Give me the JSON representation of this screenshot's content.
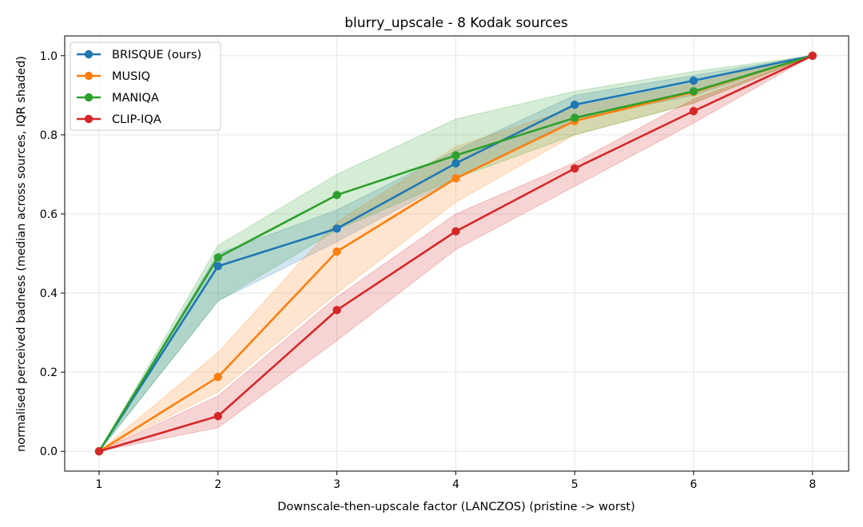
{
  "chart_data": {
    "type": "line",
    "title": "blurry_upscale - 8 Kodak sources",
    "xlabel": "Downscale-then-upscale factor (LANCZOS)  (pristine -> worst)",
    "ylabel": "normalised perceived badness  (median across sources, IQR shaded)",
    "categories": [
      "1",
      "2",
      "3",
      "4",
      "5",
      "6",
      "8"
    ],
    "ylim": [
      -0.05,
      1.05
    ],
    "yticks": [
      "0.0",
      "0.2",
      "0.4",
      "0.6",
      "0.8",
      "1.0"
    ],
    "grid": true,
    "legend_position": "top-left",
    "series": [
      {
        "name": "BRISQUE (ours)",
        "color": "#1f77b4",
        "values": [
          0.0,
          0.468,
          0.563,
          0.728,
          0.876,
          0.937,
          1.0
        ],
        "iqr_low": [
          0.0,
          0.38,
          0.53,
          0.69,
          0.84,
          0.9,
          1.0
        ],
        "iqr_high": [
          0.0,
          0.5,
          0.61,
          0.76,
          0.9,
          0.95,
          1.0
        ]
      },
      {
        "name": "MUSIQ",
        "color": "#ff7f0e",
        "values": [
          0.0,
          0.188,
          0.505,
          0.69,
          0.835,
          0.908,
          1.0
        ],
        "iqr_low": [
          0.0,
          0.15,
          0.4,
          0.63,
          0.8,
          0.88,
          1.0
        ],
        "iqr_high": [
          0.0,
          0.25,
          0.58,
          0.77,
          0.87,
          0.93,
          1.0
        ]
      },
      {
        "name": "MANIQA",
        "color": "#2ca02c",
        "values": [
          0.0,
          0.49,
          0.648,
          0.748,
          0.843,
          0.91,
          1.0
        ],
        "iqr_low": [
          0.0,
          0.38,
          0.56,
          0.69,
          0.8,
          0.88,
          1.0
        ],
        "iqr_high": [
          0.0,
          0.52,
          0.7,
          0.84,
          0.91,
          0.96,
          1.0
        ]
      },
      {
        "name": "CLIP-IQA",
        "color": "#d62728",
        "values": [
          0.0,
          0.089,
          0.357,
          0.556,
          0.715,
          0.86,
          1.0
        ],
        "iqr_low": [
          0.0,
          0.06,
          0.28,
          0.51,
          0.67,
          0.83,
          1.0
        ],
        "iqr_high": [
          0.0,
          0.14,
          0.39,
          0.6,
          0.73,
          0.89,
          1.0
        ]
      }
    ]
  }
}
